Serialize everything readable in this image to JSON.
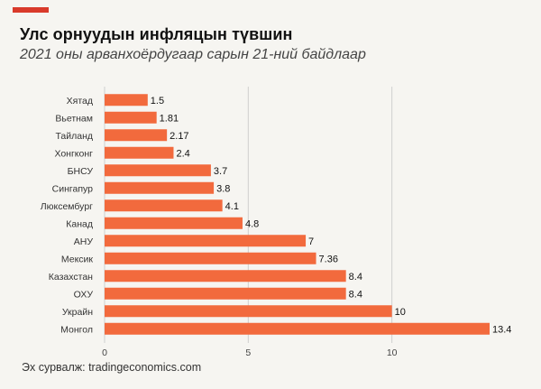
{
  "header": {
    "title": "Улс орнуудын инфляцын түвшин",
    "subtitle": "2021 оны арванхоёрдугаар сарын 21-ний байдлаар"
  },
  "footer": {
    "source": "Эх сурвалж: tradingeconomics.com"
  },
  "colors": {
    "accent": "#d93a2b",
    "bar": "#f26a3d",
    "background": "#f6f5f1",
    "grid": "#cfcfcf"
  },
  "chart_data": {
    "type": "bar",
    "orientation": "horizontal",
    "title": "Улс орнуудын инфляцын түвшин",
    "subtitle": "2021 оны арванхоёрдугаар сарын 21-ний байдлаар",
    "categories": [
      "Хятад",
      "Вьетнам",
      "Тайланд",
      "Хонгконг",
      "БНСУ",
      "Сингапур",
      "Люксембург",
      "Канад",
      "АНУ",
      "Мексик",
      "Казахстан",
      "ОХУ",
      "Украйн",
      "Монгол"
    ],
    "values": [
      1.5,
      1.81,
      2.17,
      2.4,
      3.7,
      3.8,
      4.1,
      4.8,
      7,
      7.36,
      8.4,
      8.4,
      10,
      13.4
    ],
    "value_labels": [
      "1.5",
      "1.81",
      "2.17",
      "2.4",
      "3.7",
      "3.8",
      "4.1",
      "4.8",
      "7",
      "7.36",
      "8.4",
      "8.4",
      "10",
      "13.4"
    ],
    "xlim": [
      0,
      13.4
    ],
    "xticks": [
      0,
      5,
      10
    ],
    "xtick_labels": [
      "0",
      "5",
      "10"
    ],
    "xlabel": "",
    "ylabel": "",
    "grid": "vertical"
  }
}
